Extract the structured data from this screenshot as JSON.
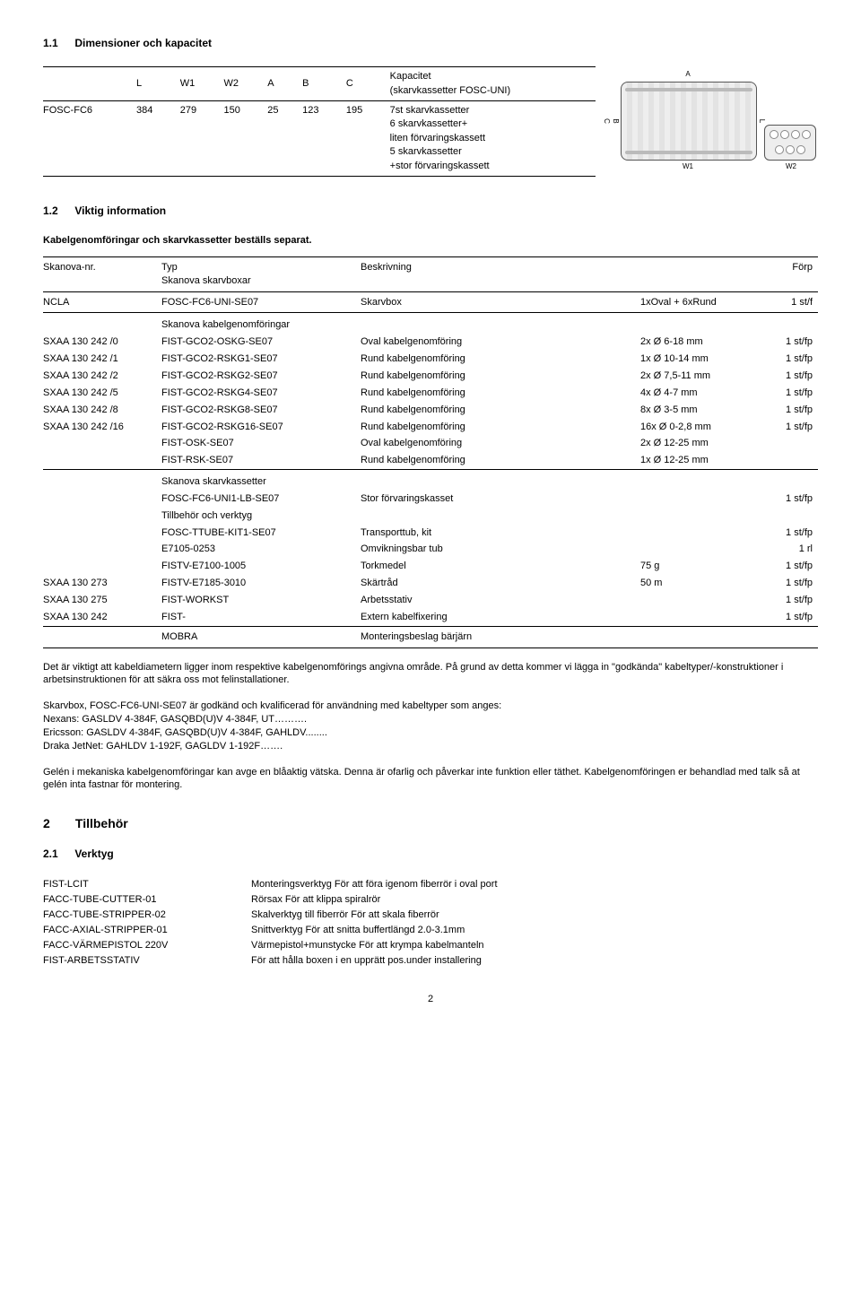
{
  "s1_1": {
    "num": "1.1",
    "title": "Dimensioner och kapacitet"
  },
  "dim": {
    "headers": [
      "",
      "L",
      "W1",
      "W2",
      "A",
      "B",
      "C",
      "Kapacitet\n(skarvkassetter FOSC-UNI)"
    ],
    "row": {
      "label": "FOSC-FC6",
      "L": "384",
      "W1": "279",
      "W2": "150",
      "A": "25",
      "B": "123",
      "C": "195",
      "cap": "7st skarvkassetter\n6 skarvkassetter+\nliten förvaringskassett\n5 skarvkassetter\n+stor förvaringskassett"
    },
    "diagram_labels": {
      "A": "A",
      "W1": "W1",
      "B": "B",
      "C": "C",
      "L": "L",
      "W2": "W2"
    }
  },
  "s1_2": {
    "num": "1.2",
    "title": "Viktig information"
  },
  "sep_line": "Kabelgenomföringar och skarvkassetter beställs separat.",
  "hdr": {
    "c1": "Skanova-nr.",
    "c2": "Typ",
    "c3": "Beskrivning",
    "c4": "",
    "c5": "Förp"
  },
  "grp1_sub": "Skanova skarvboxar",
  "ncla": {
    "c1": "NCLA",
    "c2": "FOSC-FC6-UNI-SE07",
    "c3": "Skarvbox",
    "c4": "1xOval + 6xRund",
    "c5": "1 st/f"
  },
  "grp2": "Skanova kabelgenomföringar",
  "rows2": [
    {
      "c1": "SXAA 130 242 /0",
      "c2": "FIST-GCO2-OSKG-SE07",
      "c3": "Oval kabelgenomföring",
      "c4": "2x Ø 6-18 mm",
      "c5": "1 st/fp"
    },
    {
      "c1": "SXAA 130 242 /1",
      "c2": "FIST-GCO2-RSKG1-SE07",
      "c3": "Rund kabelgenomföring",
      "c4": "1x Ø 10-14 mm",
      "c5": "1 st/fp"
    },
    {
      "c1": "SXAA 130 242 /2",
      "c2": "FIST-GCO2-RSKG2-SE07",
      "c3": "Rund kabelgenomföring",
      "c4": "2x Ø 7,5-11 mm",
      "c5": "1 st/fp"
    },
    {
      "c1": "SXAA 130 242 /5",
      "c2": "FIST-GCO2-RSKG4-SE07",
      "c3": "Rund kabelgenomföring",
      "c4": "4x Ø 4-7 mm",
      "c5": "1 st/fp"
    },
    {
      "c1": "SXAA 130 242 /8",
      "c2": "FIST-GCO2-RSKG8-SE07",
      "c3": "Rund kabelgenomföring",
      "c4": "8x Ø 3-5 mm",
      "c5": "1 st/fp"
    },
    {
      "c1": "SXAA 130 242 /16",
      "c2": "FIST-GCO2-RSKG16-SE07",
      "c3": "Rund kabelgenomföring",
      "c4": "16x Ø 0-2,8 mm",
      "c5": "1 st/fp"
    },
    {
      "c1": "",
      "c2": "FIST-OSK-SE07",
      "c3": "Oval kabelgenomföring",
      "c4": "2x Ø 12-25 mm",
      "c5": ""
    },
    {
      "c1": "",
      "c2": "FIST-RSK-SE07",
      "c3": "Rund kabelgenomföring",
      "c4": "1x Ø 12-25 mm",
      "c5": ""
    }
  ],
  "grp3": "Skanova skarvkassetter",
  "rows3a": [
    {
      "c1": "",
      "c2": "FOSC-FC6-UNI1-LB-SE07",
      "c3": "Stor förvaringskasset",
      "c4": "",
      "c5": "1 st/fp"
    }
  ],
  "grp3b": "Tillbehör och verktyg",
  "rows3b": [
    {
      "c1": "",
      "c2": "FOSC-TTUBE-KIT1-SE07",
      "c3": "Transporttub, kit",
      "c4": "",
      "c5": "1 st/fp"
    },
    {
      "c1": "",
      "c2": "E7105-0253",
      "c3": "Omvikningsbar tub",
      "c4": "",
      "c5": "1 rl"
    },
    {
      "c1": "",
      "c2": "FISTV-E7100-1005",
      "c3": "Torkmedel",
      "c4": "75 g",
      "c5": "1 st/fp"
    },
    {
      "c1": "SXAA 130 273",
      "c2": "FISTV-E7185-3010",
      "c3": "Skärtråd",
      "c4": "50 m",
      "c5": "1 st/fp"
    },
    {
      "c1": "SXAA 130 275",
      "c2": "FIST-WORKST",
      "c3": "Arbetsstativ",
      "c4": "",
      "c5": "1 st/fp"
    },
    {
      "c1": "SXAA 130 242",
      "c2": "FIST-",
      "c3": "Extern kabelfixering",
      "c4": "",
      "c5": "1 st/fp"
    }
  ],
  "mobra": {
    "c2": "MOBRA",
    "c3": "Monteringsbeslag bärjärn"
  },
  "para1": "Det är viktigt att kabeldiametern ligger inom respektive kabelgenomförings angivna område. På grund av detta kommer vi lägga in \"godkända\" kabeltyper/-konstruktioner i arbetsinstruktionen för att säkra oss mot felinstallationer.",
  "para2_l1": "Skarvbox, FOSC-FC6-UNI-SE07 är godkänd och kvalificerad för användning med kabeltyper som anges:",
  "para2_l2": "Nexans: GASLDV 4-384F, GASQBD(U)V 4-384F, UT……….",
  "para2_l3": "Ericsson: GASLDV 4-384F, GASQBD(U)V 4-384F, GAHLDV........",
  "para2_l4": "Draka JetNet: GAHLDV 1-192F, GAGLDV 1-192F…….",
  "para3": "Gelén i mekaniska kabelgenomföringar kan avge en blåaktig vätska. Denna är ofarlig och påverkar inte funktion eller täthet. Kabelgenomföringen er behandlad med talk så at gelén inta fastnar för montering.",
  "s2": {
    "num": "2",
    "title": "Tillbehör"
  },
  "s2_1": {
    "num": "2.1",
    "title": "Verktyg"
  },
  "tools": [
    {
      "c1": "FIST-LCIT",
      "c2": "Monteringsverktyg För att föra igenom fiberrör i oval port"
    },
    {
      "c1": "FACC-TUBE-CUTTER-01",
      "c2": "Rörsax För att klippa spiralrör"
    },
    {
      "c1": "FACC-TUBE-STRIPPER-02",
      "c2": "Skalverktyg till fiberrör För att skala fiberrör"
    },
    {
      "c1": "FACC-AXIAL-STRIPPER-01",
      "c2": "Snittverktyg För att snitta buffertlängd 2.0-3.1mm"
    },
    {
      "c1": "FACC-VÄRMEPISTOL 220V",
      "c2": "Värmepistol+munstycke För att krympa kabelmanteln"
    },
    {
      "c1": "FIST-ARBETSSTATIV",
      "c2": "För att hålla boxen i en upprätt pos.under installering"
    }
  ],
  "page": "2"
}
